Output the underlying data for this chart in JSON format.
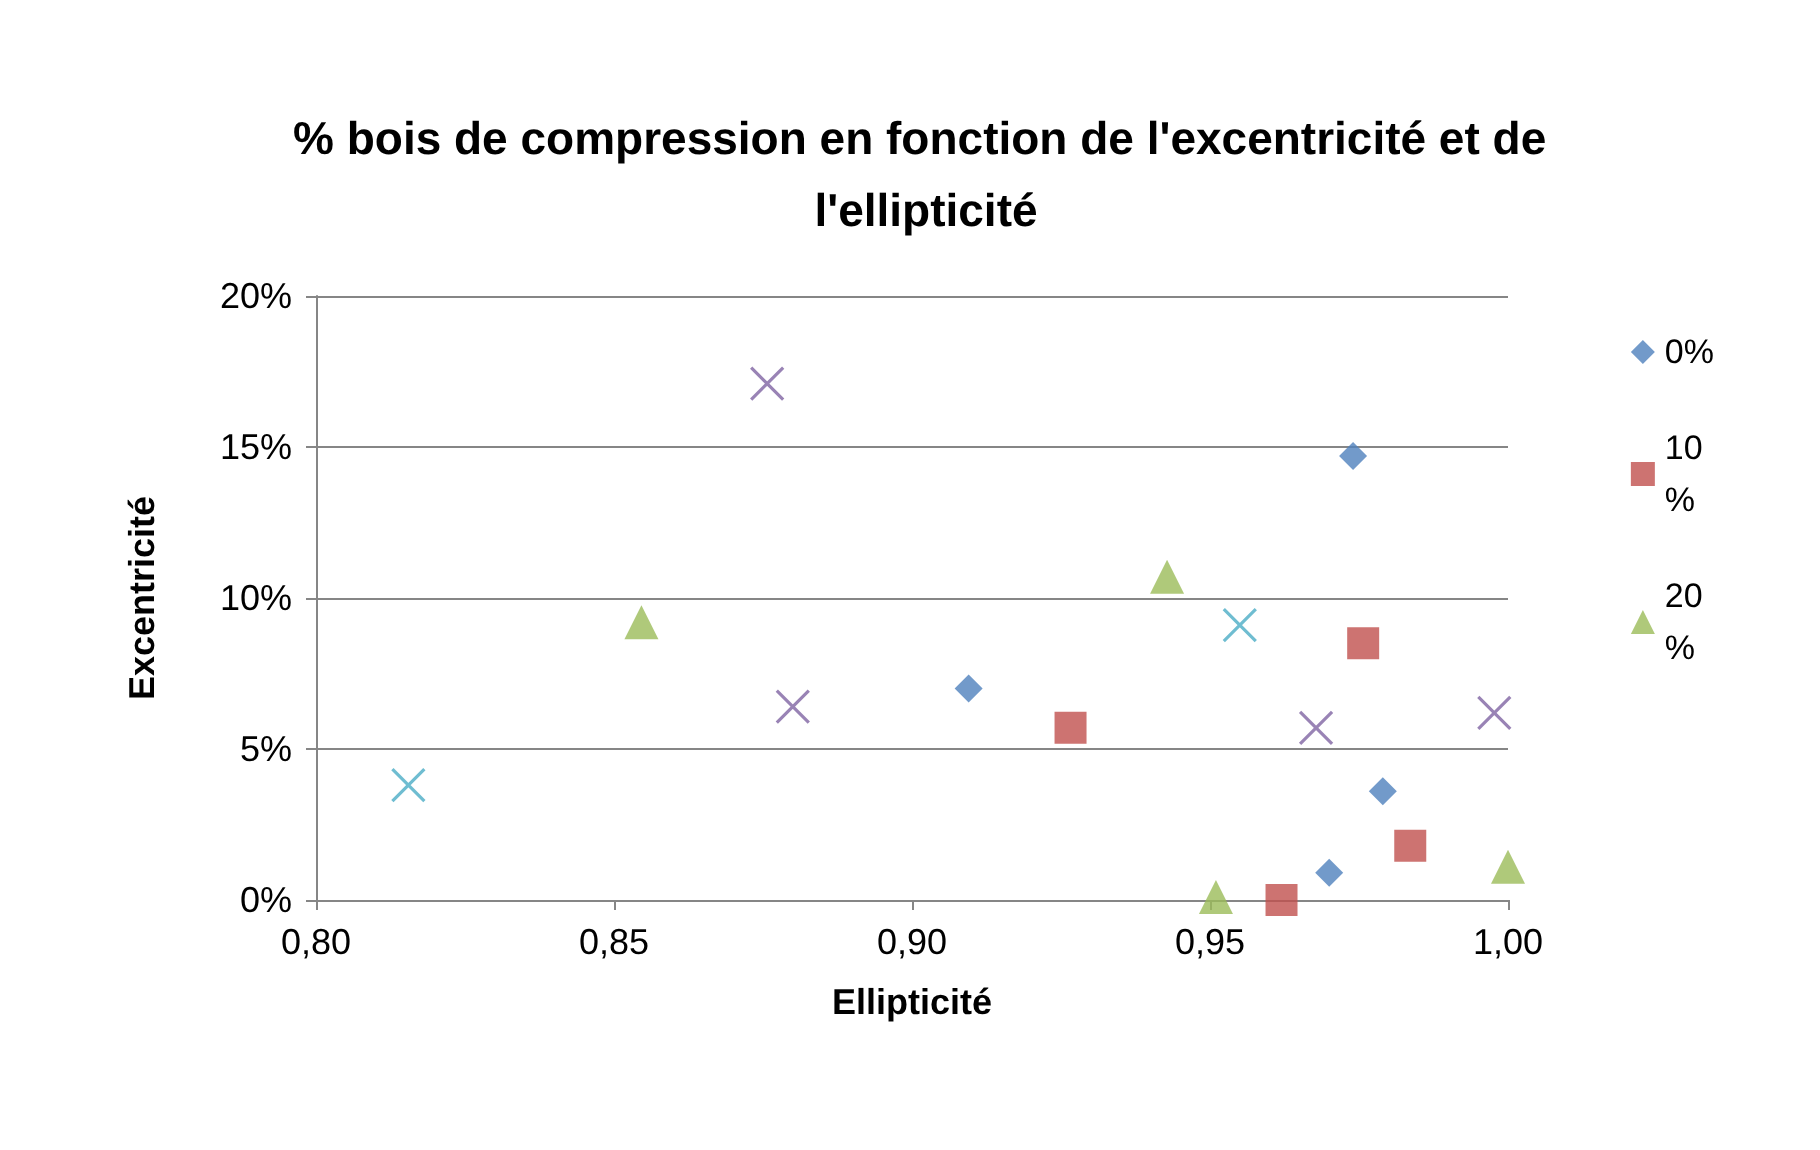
{
  "chart_data": {
    "type": "scatter",
    "title": "% bois de compression en fonction de l'excentricité et de l'ellipticité",
    "xlabel": "Ellipticité",
    "ylabel": "Excentricité",
    "xlim": [
      0.8,
      1.0
    ],
    "xticks": [
      {
        "value": 0.8,
        "label": "0,80"
      },
      {
        "value": 0.85,
        "label": "0,85"
      },
      {
        "value": 0.9,
        "label": "0,90"
      },
      {
        "value": 0.95,
        "label": "0,95"
      },
      {
        "value": 1.0,
        "label": "1,00"
      }
    ],
    "ylim": [
      0,
      20
    ],
    "yticks": [
      {
        "value": 0,
        "label": "0%"
      },
      {
        "value": 5,
        "label": "5%"
      },
      {
        "value": 10,
        "label": "10%"
      },
      {
        "value": 15,
        "label": "15%"
      },
      {
        "value": 20,
        "label": "20%"
      }
    ],
    "grid": "y",
    "legend": "right",
    "series": [
      {
        "name": "0%",
        "color": "#4f81bd",
        "marker": "diamond",
        "x": [
          0.974,
          0.9095,
          0.979,
          0.97
        ],
        "values": [
          14.7,
          7.0,
          3.6,
          0.9
        ]
      },
      {
        "name": "10 %",
        "color": "#c0504d",
        "marker": "square",
        "x": [
          0.9266,
          0.9757,
          0.962,
          0.9836
        ],
        "values": [
          5.7,
          8.5,
          0,
          1.8
        ]
      },
      {
        "name": "20 %",
        "color": "#9bbb59",
        "marker": "triangle",
        "x": [
          0.8546,
          0.9428,
          0.951,
          1.0
        ],
        "values": [
          9.2,
          10.7,
          0.1,
          1.1
        ]
      },
      {
        "color": "#8064a2",
        "marker": "cross",
        "x": [
          0.8757,
          0.88,
          0.9678,
          0.9977
        ],
        "values": [
          17.1,
          6.4,
          5.7,
          6.2
        ]
      },
      {
        "color": "#4bacc6",
        "marker": "cross",
        "x": [
          0.8155,
          0.955
        ],
        "values": [
          3.8,
          9.1
        ]
      }
    ]
  }
}
